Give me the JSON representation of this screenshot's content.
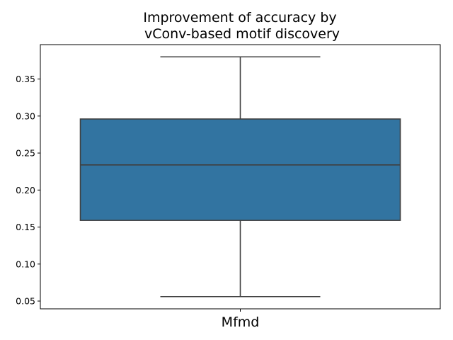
{
  "chart_data": {
    "type": "box",
    "title_lines": [
      "Improvement of accuracy by",
      " vConv-based motif discovery"
    ],
    "xlabel": "",
    "ylabel": "",
    "categories": [
      "Mfmd"
    ],
    "boxes": [
      {
        "category": "Mfmd",
        "whisker_low": 0.056,
        "q1": 0.159,
        "median": 0.234,
        "q3": 0.296,
        "whisker_high": 0.38
      }
    ],
    "ylim": [
      0.0395,
      0.3965
    ],
    "yticks": [
      0.05,
      0.1,
      0.15,
      0.2,
      0.25,
      0.3,
      0.35
    ],
    "ytick_labels": [
      "0.05",
      "0.10",
      "0.15",
      "0.20",
      "0.25",
      "0.30",
      "0.35"
    ],
    "grid": false,
    "box_color": "#3274a1",
    "line_color": "#3f3f3f"
  }
}
